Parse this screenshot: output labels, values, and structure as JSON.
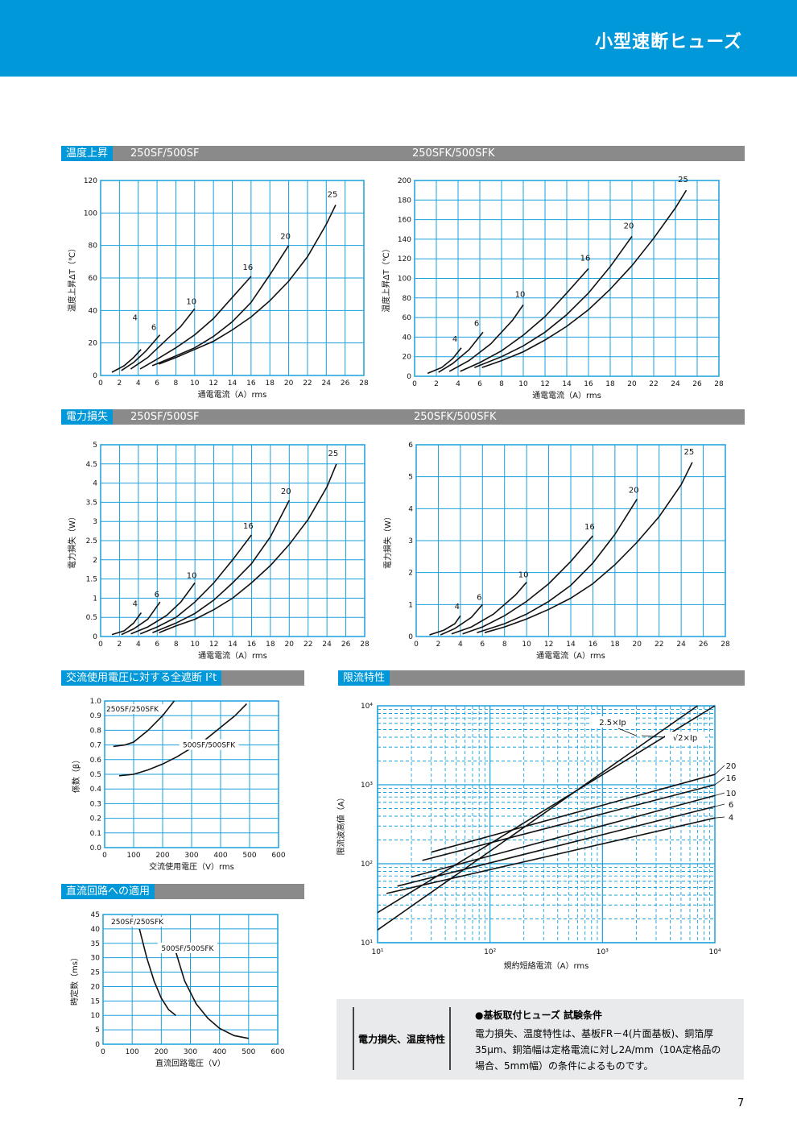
{
  "header": {
    "title": "小型速断ヒューズ"
  },
  "sections": {
    "temp": {
      "tag": "温度上昇",
      "left": "250SF/500SF",
      "right": "250SFK/500SFK"
    },
    "power": {
      "tag": "電力損失",
      "left": "250SF/500SF",
      "right": "250SFK/500SFK"
    },
    "i2t": {
      "tag": "交流使用電圧に対する全遮断 I²t"
    },
    "limit": {
      "tag": "限流特性"
    },
    "dc": {
      "tag": "直流回路への適用"
    }
  },
  "note": {
    "left": "電力損失、温度特性",
    "title": "●基板取付ヒューズ 試験条件",
    "lines": [
      "電力損失、温度特性は、基板FR－4(片面基板)、銅箔厚",
      "35μm、銅箔幅は定格電流に対し2A/mm（10A定格品の",
      "場合、5mm幅）の条件によるものです。"
    ]
  },
  "page_number": "7",
  "chart_data": [
    {
      "type": "line",
      "xlabel": "通電電流（A）rms",
      "ylabel": "温度上昇ΔT（℃）",
      "xlim": [
        0,
        28
      ],
      "ylim": [
        0,
        120
      ],
      "xticks": [
        0,
        2,
        4,
        6,
        8,
        10,
        12,
        14,
        16,
        18,
        20,
        22,
        24,
        26,
        28
      ],
      "yticks": [
        0,
        20,
        40,
        60,
        80,
        100,
        120
      ],
      "series": [
        {
          "name": "4",
          "x": [
            1.2,
            2.5,
            3.5,
            4.3
          ],
          "y": [
            2,
            6,
            11,
            16
          ]
        },
        {
          "name": "6",
          "x": [
            2.2,
            3.5,
            4.8,
            6.3
          ],
          "y": [
            3,
            8,
            15,
            25
          ]
        },
        {
          "name": "10",
          "x": [
            3.2,
            5,
            7,
            8.5,
            10
          ],
          "y": [
            4,
            11,
            22,
            30,
            41
          ]
        },
        {
          "name": "16",
          "x": [
            4.2,
            6,
            8,
            10,
            12,
            14,
            16
          ],
          "y": [
            4,
            10,
            17,
            25,
            35,
            48,
            61
          ]
        },
        {
          "name": "20",
          "x": [
            5.5,
            8,
            10,
            12,
            14,
            16,
            18,
            20
          ],
          "y": [
            6,
            12,
            17,
            24,
            33,
            45,
            62,
            80
          ]
        },
        {
          "name": "25",
          "x": [
            6.2,
            8,
            10,
            12,
            14,
            16,
            18,
            20,
            22,
            24,
            25
          ],
          "y": [
            7,
            11,
            16,
            21,
            28,
            36,
            46,
            58,
            73,
            93,
            105
          ]
        }
      ]
    },
    {
      "type": "line",
      "xlabel": "通電電流（A）rms",
      "ylabel": "温度上昇ΔT（℃）",
      "xlim": [
        0,
        28
      ],
      "ylim": [
        0,
        200
      ],
      "xticks": [
        0,
        2,
        4,
        6,
        8,
        10,
        12,
        14,
        16,
        18,
        20,
        22,
        24,
        26,
        28
      ],
      "yticks": [
        0,
        20,
        40,
        60,
        80,
        100,
        120,
        140,
        160,
        180,
        200
      ],
      "series": [
        {
          "name": "4",
          "x": [
            1.2,
            2.5,
            3.5,
            4.3
          ],
          "y": [
            3,
            9,
            18,
            29
          ]
        },
        {
          "name": "6",
          "x": [
            2.2,
            3.5,
            5,
            6.3
          ],
          "y": [
            4,
            13,
            27,
            45
          ]
        },
        {
          "name": "10",
          "x": [
            3.2,
            5,
            7,
            9,
            10
          ],
          "y": [
            5,
            16,
            33,
            57,
            73
          ]
        },
        {
          "name": "16",
          "x": [
            4.2,
            6,
            8,
            10,
            12,
            14,
            16
          ],
          "y": [
            5,
            14,
            26,
            42,
            61,
            85,
            110
          ]
        },
        {
          "name": "20",
          "x": [
            5.5,
            8,
            10,
            12,
            14,
            16,
            18,
            20
          ],
          "y": [
            9,
            20,
            31,
            45,
            63,
            85,
            112,
            143
          ]
        },
        {
          "name": "25",
          "x": [
            6.2,
            8,
            10,
            12,
            14,
            16,
            18,
            20,
            22,
            24,
            25
          ],
          "y": [
            9,
            16,
            25,
            37,
            51,
            68,
            89,
            113,
            141,
            172,
            190
          ]
        }
      ]
    },
    {
      "type": "line",
      "xlabel": "通電電流（A）rms",
      "ylabel": "電力損失（W）",
      "xlim": [
        0,
        28
      ],
      "ylim": [
        0,
        5
      ],
      "xticks": [
        0,
        2,
        4,
        6,
        8,
        10,
        12,
        14,
        16,
        18,
        20,
        22,
        24,
        26,
        28
      ],
      "yticks": [
        0,
        0.5,
        1,
        1.5,
        2,
        2.5,
        3,
        3.5,
        4,
        4.5,
        5
      ],
      "series": [
        {
          "name": "4",
          "x": [
            1.2,
            2.5,
            3.5,
            4.3
          ],
          "y": [
            0.05,
            0.15,
            0.35,
            0.62
          ]
        },
        {
          "name": "6",
          "x": [
            2.2,
            3.5,
            5,
            6.3
          ],
          "y": [
            0.05,
            0.2,
            0.45,
            0.9
          ]
        },
        {
          "name": "10",
          "x": [
            3.2,
            5,
            7,
            8.5,
            10
          ],
          "y": [
            0.07,
            0.25,
            0.55,
            0.9,
            1.4
          ]
        },
        {
          "name": "16",
          "x": [
            4.2,
            6,
            8,
            10,
            12,
            14,
            16
          ],
          "y": [
            0.07,
            0.25,
            0.5,
            0.9,
            1.4,
            2,
            2.65
          ]
        },
        {
          "name": "20",
          "x": [
            5.5,
            8,
            10,
            12,
            14,
            16,
            18,
            20
          ],
          "y": [
            0.1,
            0.35,
            0.6,
            0.95,
            1.4,
            1.9,
            2.6,
            3.55
          ]
        },
        {
          "name": "25",
          "x": [
            6.2,
            8,
            10,
            12,
            14,
            16,
            18,
            20,
            22,
            24,
            25
          ],
          "y": [
            0.1,
            0.28,
            0.45,
            0.7,
            1,
            1.4,
            1.85,
            2.4,
            3.05,
            3.9,
            4.5
          ]
        }
      ]
    },
    {
      "type": "line",
      "xlabel": "通電電流（A）rms",
      "ylabel": "電力損失（W）",
      "xlim": [
        0,
        28
      ],
      "ylim": [
        0,
        6
      ],
      "xticks": [
        0,
        2,
        4,
        6,
        8,
        10,
        12,
        14,
        16,
        18,
        20,
        22,
        24,
        26,
        28
      ],
      "yticks": [
        0,
        1,
        2,
        3,
        4,
        5,
        6
      ],
      "series": [
        {
          "name": "4",
          "x": [
            1.2,
            2.5,
            3.5,
            4
          ],
          "y": [
            0.05,
            0.2,
            0.4,
            0.65
          ]
        },
        {
          "name": "6",
          "x": [
            2.2,
            3.5,
            5,
            6
          ],
          "y": [
            0.05,
            0.25,
            0.6,
            1
          ]
        },
        {
          "name": "10",
          "x": [
            3.2,
            5,
            7,
            9,
            10
          ],
          "y": [
            0.08,
            0.3,
            0.7,
            1.3,
            1.7
          ]
        },
        {
          "name": "16",
          "x": [
            4.2,
            6,
            8,
            10,
            12,
            14,
            16
          ],
          "y": [
            0.08,
            0.3,
            0.65,
            1.1,
            1.65,
            2.35,
            3.15
          ]
        },
        {
          "name": "20",
          "x": [
            5.5,
            8,
            10,
            12,
            14,
            16,
            18,
            20
          ],
          "y": [
            0.12,
            0.4,
            0.7,
            1.1,
            1.6,
            2.3,
            3.2,
            4.3
          ]
        },
        {
          "name": "25",
          "x": [
            6.2,
            8,
            10,
            12,
            14,
            16,
            18,
            20,
            22,
            24,
            25
          ],
          "y": [
            0.12,
            0.3,
            0.55,
            0.85,
            1.2,
            1.65,
            2.25,
            2.95,
            3.75,
            4.75,
            5.45
          ]
        }
      ]
    },
    {
      "type": "line",
      "xlabel": "交流使用電圧（V）rms",
      "ylabel": "係数（β）",
      "xlim": [
        0,
        600
      ],
      "ylim": [
        0,
        1
      ],
      "xticks": [
        0,
        100,
        200,
        300,
        400,
        500,
        600
      ],
      "yticks": [
        "0.0",
        "0.1",
        "0.2",
        "0.3",
        "0.4",
        "0.5",
        "0.6",
        "0.7",
        "0.8",
        "0.9",
        "1.0"
      ],
      "series": [
        {
          "name": "250SF/250SFK",
          "x": [
            30,
            70,
            100,
            150,
            200,
            240
          ],
          "y": [
            0.69,
            0.7,
            0.72,
            0.8,
            0.9,
            1
          ]
        },
        {
          "name": "500SF/500SFK",
          "x": [
            50,
            100,
            150,
            200,
            250,
            300,
            350,
            400,
            450,
            490
          ],
          "y": [
            0.49,
            0.5,
            0.53,
            0.57,
            0.62,
            0.68,
            0.74,
            0.82,
            0.9,
            0.98
          ]
        }
      ]
    },
    {
      "type": "line",
      "xlabel": "規約短絡電流（A）rms",
      "ylabel": "限流波高値（A）",
      "xscale": "log",
      "yscale": "log",
      "xlim": [
        10,
        10000
      ],
      "ylim": [
        10,
        10000
      ],
      "xticks": [
        "10¹",
        "10²",
        "10³",
        "10⁴"
      ],
      "yticks": [
        "10¹",
        "10²",
        "10³",
        "10⁴"
      ],
      "series": [
        {
          "name": "2.5×Ip",
          "x": [
            10,
            7000
          ],
          "y": [
            14.5,
            10000
          ]
        },
        {
          "name": "√2×Ip",
          "x": [
            10,
            10000
          ],
          "y": [
            24,
            13200
          ]
        },
        {
          "name": "20",
          "x": [
            30,
            10000
          ],
          "y": [
            140,
            1350
          ]
        },
        {
          "name": "16",
          "x": [
            25,
            10000
          ],
          "y": [
            110,
            1000
          ]
        },
        {
          "name": "10",
          "x": [
            20,
            10000
          ],
          "y": [
            68,
            730
          ]
        },
        {
          "name": "6",
          "x": [
            15,
            10000
          ],
          "y": [
            52,
            530
          ]
        },
        {
          "name": "4",
          "x": [
            12,
            10000
          ],
          "y": [
            42,
            380
          ]
        }
      ]
    },
    {
      "type": "line",
      "xlabel": "直流回路電圧（V）",
      "ylabel": "時定数（ms）",
      "xlim": [
        0,
        600
      ],
      "ylim": [
        0,
        45
      ],
      "xticks": [
        0,
        100,
        200,
        300,
        400,
        500,
        600
      ],
      "yticks": [
        0,
        5,
        10,
        15,
        20,
        25,
        30,
        35,
        40,
        45
      ],
      "series": [
        {
          "name": "250SF/250SFK",
          "x": [
            125,
            150,
            175,
            200,
            225,
            250
          ],
          "y": [
            40,
            30,
            22,
            16,
            12,
            10
          ]
        },
        {
          "name": "500SF/500SFK",
          "x": [
            250,
            280,
            320,
            360,
            400,
            450,
            500
          ],
          "y": [
            32,
            22,
            14,
            9,
            5.5,
            3,
            2
          ]
        }
      ]
    }
  ]
}
